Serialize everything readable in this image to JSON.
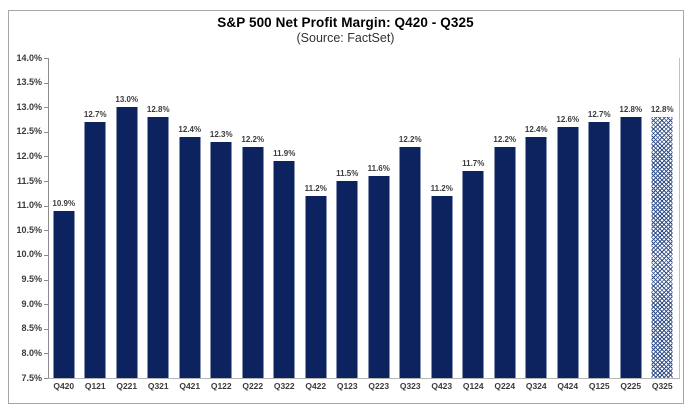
{
  "header": {
    "title": "S&P 500 Net Profit Margin: Q420 - Q325",
    "subtitle": "(Source: FactSet)"
  },
  "colors": {
    "bar": "#0d2360",
    "hatch": "#35528b",
    "axis_line": "#8c8c8c",
    "plot_border": "#c0c0c0",
    "label_text": "#3b3b3b",
    "frame_border": "#a6a6a6",
    "background": "#ffffff"
  },
  "chart_data": {
    "type": "bar",
    "title": "S&P 500 Net Profit Margin: Q420 - Q325",
    "subtitle": "(Source: FactSet)",
    "categories": [
      "Q420",
      "Q121",
      "Q221",
      "Q321",
      "Q421",
      "Q122",
      "Q222",
      "Q322",
      "Q422",
      "Q123",
      "Q223",
      "Q323",
      "Q423",
      "Q124",
      "Q224",
      "Q324",
      "Q424",
      "Q125",
      "Q225",
      "Q325"
    ],
    "values": [
      10.9,
      12.7,
      13.0,
      12.8,
      12.4,
      12.3,
      12.2,
      11.9,
      11.2,
      11.5,
      11.6,
      12.2,
      11.2,
      11.7,
      12.2,
      12.4,
      12.6,
      12.7,
      12.8,
      12.8
    ],
    "value_labels": [
      "10.9%",
      "12.7%",
      "13.0%",
      "12.8%",
      "12.4%",
      "12.3%",
      "12.2%",
      "11.9%",
      "11.2%",
      "11.5%",
      "11.6%",
      "12.2%",
      "11.2%",
      "11.7%",
      "12.2%",
      "12.4%",
      "12.6%",
      "12.7%",
      "12.8%",
      "12.8%"
    ],
    "ylim": [
      7.5,
      14.0
    ],
    "ytick_step": 0.5,
    "ytick_labels": [
      "14.0%",
      "13.5%",
      "13.0%",
      "12.5%",
      "12.0%",
      "11.5%",
      "11.0%",
      "10.5%",
      "10.0%",
      "9.5%",
      "9.0%",
      "8.5%",
      "8.0%",
      "7.5%"
    ],
    "xlabel": "",
    "ylabel": "",
    "grid": false,
    "legend": "none",
    "bar_style": "solid",
    "estimate_bar_index": 19,
    "estimate_bar_style": "hatched"
  }
}
